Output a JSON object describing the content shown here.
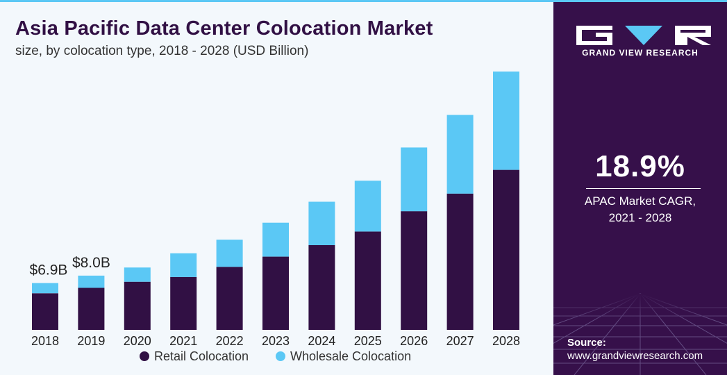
{
  "title": "Asia Pacific Data Center Colocation Market",
  "subtitle": "size, by colocation type, 2018 - 2028 (USD Billion)",
  "brand": {
    "name": "GRAND VIEW RESEARCH"
  },
  "stat": {
    "value": "18.9%",
    "label_line1": "APAC Market CAGR,",
    "label_line2": "2021 - 2028"
  },
  "source": {
    "label": "Source:",
    "url": "www.grandviewresearch.com"
  },
  "colors": {
    "retail": "#311044",
    "wholesale": "#5bc8f5",
    "side_panel": "#36104a",
    "chart_bg": "#f3f8fc"
  },
  "chart_data": {
    "type": "bar",
    "stacked": true,
    "categories": [
      "2018",
      "2019",
      "2020",
      "2021",
      "2022",
      "2023",
      "2024",
      "2025",
      "2026",
      "2027",
      "2028"
    ],
    "series": [
      {
        "name": "Retail Colocation",
        "values": [
          5.4,
          6.2,
          7.1,
          7.8,
          9.3,
          10.8,
          12.5,
          14.5,
          17.5,
          20.1,
          23.6
        ]
      },
      {
        "name": "Wholesale Colocation",
        "values": [
          1.5,
          1.8,
          2.1,
          3.5,
          4.0,
          5.0,
          6.4,
          7.5,
          9.4,
          11.6,
          14.5
        ]
      }
    ],
    "data_labels": [
      "$6.9B",
      "$8.0B"
    ],
    "legend": "bottom",
    "grid": false,
    "ylim": [
      0,
      38.1
    ]
  }
}
